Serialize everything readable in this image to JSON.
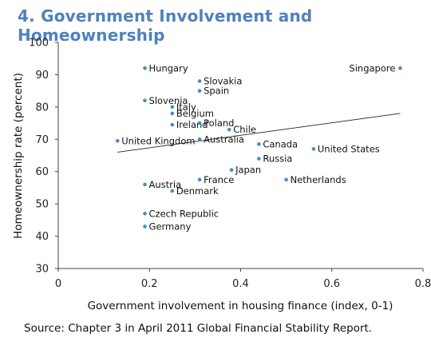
{
  "title": "4. Government Involvement and Homeownership",
  "source": "Source: Chapter 3 in April 2011 Global Financial Stability Report.",
  "chart_data": {
    "type": "scatter",
    "xlabel": "Government involvement in housing finance (index, 0-1)",
    "ylabel": "Homeownership rate (percent)",
    "xlim": [
      0,
      0.8
    ],
    "ylim": [
      30,
      100
    ],
    "xticks": [
      "0",
      "0.2",
      "0.4",
      "0.6",
      "0.8"
    ],
    "yticks": [
      "30",
      "40",
      "50",
      "60",
      "70",
      "80",
      "90",
      "100"
    ],
    "grid": false,
    "legend": "none",
    "point_color": "#4a8bc2",
    "highlight_color": "#c00000",
    "trendline": {
      "x": [
        0.13,
        0.75
      ],
      "y": [
        66,
        78
      ]
    },
    "points": [
      {
        "label": "Hungary",
        "x": 0.19,
        "y": 92
      },
      {
        "label": "Singapore",
        "x": 0.75,
        "y": 92
      },
      {
        "label": "Slovakia",
        "x": 0.31,
        "y": 88
      },
      {
        "label": "Spain",
        "x": 0.31,
        "y": 85
      },
      {
        "label": "Slovenia",
        "x": 0.19,
        "y": 82
      },
      {
        "label": "Italy",
        "x": 0.25,
        "y": 80
      },
      {
        "label": "Belgium",
        "x": 0.25,
        "y": 78
      },
      {
        "label": "Ireland",
        "x": 0.25,
        "y": 74.5
      },
      {
        "label": "Poland",
        "x": 0.31,
        "y": 75
      },
      {
        "label": "Chile",
        "x": 0.375,
        "y": 73
      },
      {
        "label": "United Kingdom",
        "x": 0.13,
        "y": 69.5
      },
      {
        "label": "Australia",
        "x": 0.31,
        "y": 70
      },
      {
        "label": "Canada",
        "x": 0.44,
        "y": 68.5
      },
      {
        "label": "United States",
        "x": 0.56,
        "y": 67,
        "highlight": true
      },
      {
        "label": "Russia",
        "x": 0.44,
        "y": 64
      },
      {
        "label": "Japan",
        "x": 0.38,
        "y": 60.5
      },
      {
        "label": "France",
        "x": 0.31,
        "y": 57.5
      },
      {
        "label": "Netherlands",
        "x": 0.5,
        "y": 57.5
      },
      {
        "label": "Austria",
        "x": 0.19,
        "y": 56
      },
      {
        "label": "Denmark",
        "x": 0.25,
        "y": 54
      },
      {
        "label": "Czech Republic",
        "x": 0.19,
        "y": 47
      },
      {
        "label": "Germany",
        "x": 0.19,
        "y": 43
      }
    ]
  }
}
